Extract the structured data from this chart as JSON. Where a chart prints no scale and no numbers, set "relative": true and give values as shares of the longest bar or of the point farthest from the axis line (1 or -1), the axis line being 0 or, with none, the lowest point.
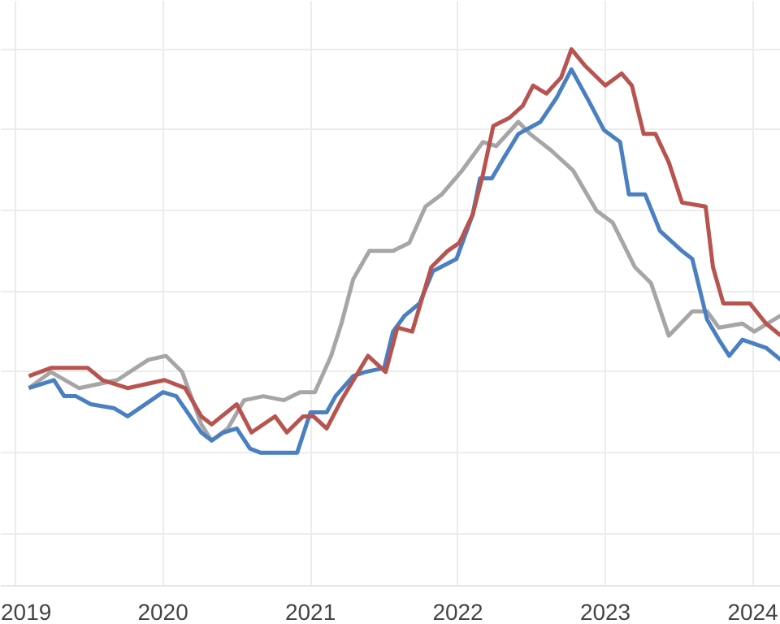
{
  "chart_data": {
    "type": "line",
    "relative": true,
    "grid": true,
    "line_style": "solid",
    "xlim": [
      2018.9,
      2024.19
    ],
    "xticks": [
      2019,
      2020,
      2021,
      2022,
      2023,
      2024
    ],
    "series": [
      {
        "color": "#a6a6a6",
        "x": [
          2019.09,
          2019.24,
          2019.43,
          2019.69,
          2019.9,
          2020.02,
          2020.13,
          2020.26,
          2020.33,
          2020.44,
          2020.55,
          2020.68,
          2020.82,
          2020.93,
          2021.03,
          2021.14,
          2021.21,
          2021.29,
          2021.4,
          2021.56,
          2021.67,
          2021.78,
          2021.89,
          2022.03,
          2022.17,
          2022.26,
          2022.41,
          2022.49,
          2022.63,
          2022.78,
          2022.94,
          2023.05,
          2023.2,
          2023.31,
          2023.43,
          2023.59,
          2023.69,
          2023.77,
          2023.93,
          2024.01,
          2024.19
        ],
        "values": [
          0.16,
          0.2,
          0.16,
          0.18,
          0.23,
          0.24,
          0.2,
          0.07,
          0.03,
          0.06,
          0.13,
          0.14,
          0.13,
          0.15,
          0.15,
          0.24,
          0.32,
          0.43,
          0.5,
          0.5,
          0.52,
          0.61,
          0.64,
          0.7,
          0.77,
          0.76,
          0.82,
          0.79,
          0.75,
          0.7,
          0.6,
          0.57,
          0.46,
          0.42,
          0.29,
          0.35,
          0.35,
          0.31,
          0.32,
          0.3,
          0.34
        ]
      },
      {
        "color": "#4a7fc1",
        "x": [
          2019.09,
          2019.26,
          2019.33,
          2019.41,
          2019.51,
          2019.67,
          2019.76,
          2020.0,
          2020.09,
          2020.26,
          2020.33,
          2020.41,
          2020.5,
          2020.59,
          2020.66,
          2020.91,
          2021.0,
          2021.11,
          2021.17,
          2021.29,
          2021.37,
          2021.5,
          2021.56,
          2021.64,
          2021.74,
          2021.83,
          2021.99,
          2022.1,
          2022.15,
          2022.23,
          2022.31,
          2022.41,
          2022.56,
          2022.67,
          2022.77,
          2022.89,
          2022.99,
          2023.1,
          2023.16,
          2023.27,
          2023.37,
          2023.52,
          2023.59,
          2023.69,
          2023.77,
          2023.84,
          2023.93,
          2024.09,
          2024.19
        ],
        "values": [
          0.16,
          0.18,
          0.14,
          0.14,
          0.12,
          0.11,
          0.09,
          0.15,
          0.14,
          0.05,
          0.03,
          0.05,
          0.06,
          0.01,
          0,
          0,
          0.1,
          0.1,
          0.14,
          0.19,
          0.2,
          0.21,
          0.3,
          0.34,
          0.37,
          0.45,
          0.48,
          0.59,
          0.68,
          0.68,
          0.73,
          0.79,
          0.82,
          0.88,
          0.95,
          0.87,
          0.8,
          0.77,
          0.64,
          0.64,
          0.55,
          0.5,
          0.48,
          0.33,
          0.28,
          0.24,
          0.28,
          0.26,
          0.23
        ]
      },
      {
        "color": "#b85450",
        "x": [
          2019.09,
          2019.24,
          2019.49,
          2019.59,
          2019.76,
          2020.01,
          2020.15,
          2020.26,
          2020.33,
          2020.5,
          2020.6,
          2020.76,
          2020.84,
          2020.95,
          2021.02,
          2021.11,
          2021.21,
          2021.39,
          2021.51,
          2021.59,
          2021.69,
          2021.82,
          2021.93,
          2022.01,
          2022.1,
          2022.17,
          2022.24,
          2022.35,
          2022.44,
          2022.51,
          2022.6,
          2022.7,
          2022.77,
          2022.86,
          2023.0,
          2023.11,
          2023.18,
          2023.26,
          2023.34,
          2023.43,
          2023.52,
          2023.68,
          2023.73,
          2023.8,
          2023.98,
          2024.09,
          2024.19
        ],
        "values": [
          0.19,
          0.21,
          0.21,
          0.18,
          0.16,
          0.18,
          0.16,
          0.09,
          0.07,
          0.12,
          0.05,
          0.09,
          0.05,
          0.09,
          0.09,
          0.06,
          0.13,
          0.24,
          0.2,
          0.31,
          0.3,
          0.46,
          0.5,
          0.52,
          0.59,
          0.69,
          0.81,
          0.83,
          0.86,
          0.91,
          0.89,
          0.93,
          1.0,
          0.96,
          0.91,
          0.94,
          0.91,
          0.79,
          0.79,
          0.72,
          0.62,
          0.61,
          0.46,
          0.37,
          0.37,
          0.32,
          0.29
        ]
      }
    ]
  }
}
